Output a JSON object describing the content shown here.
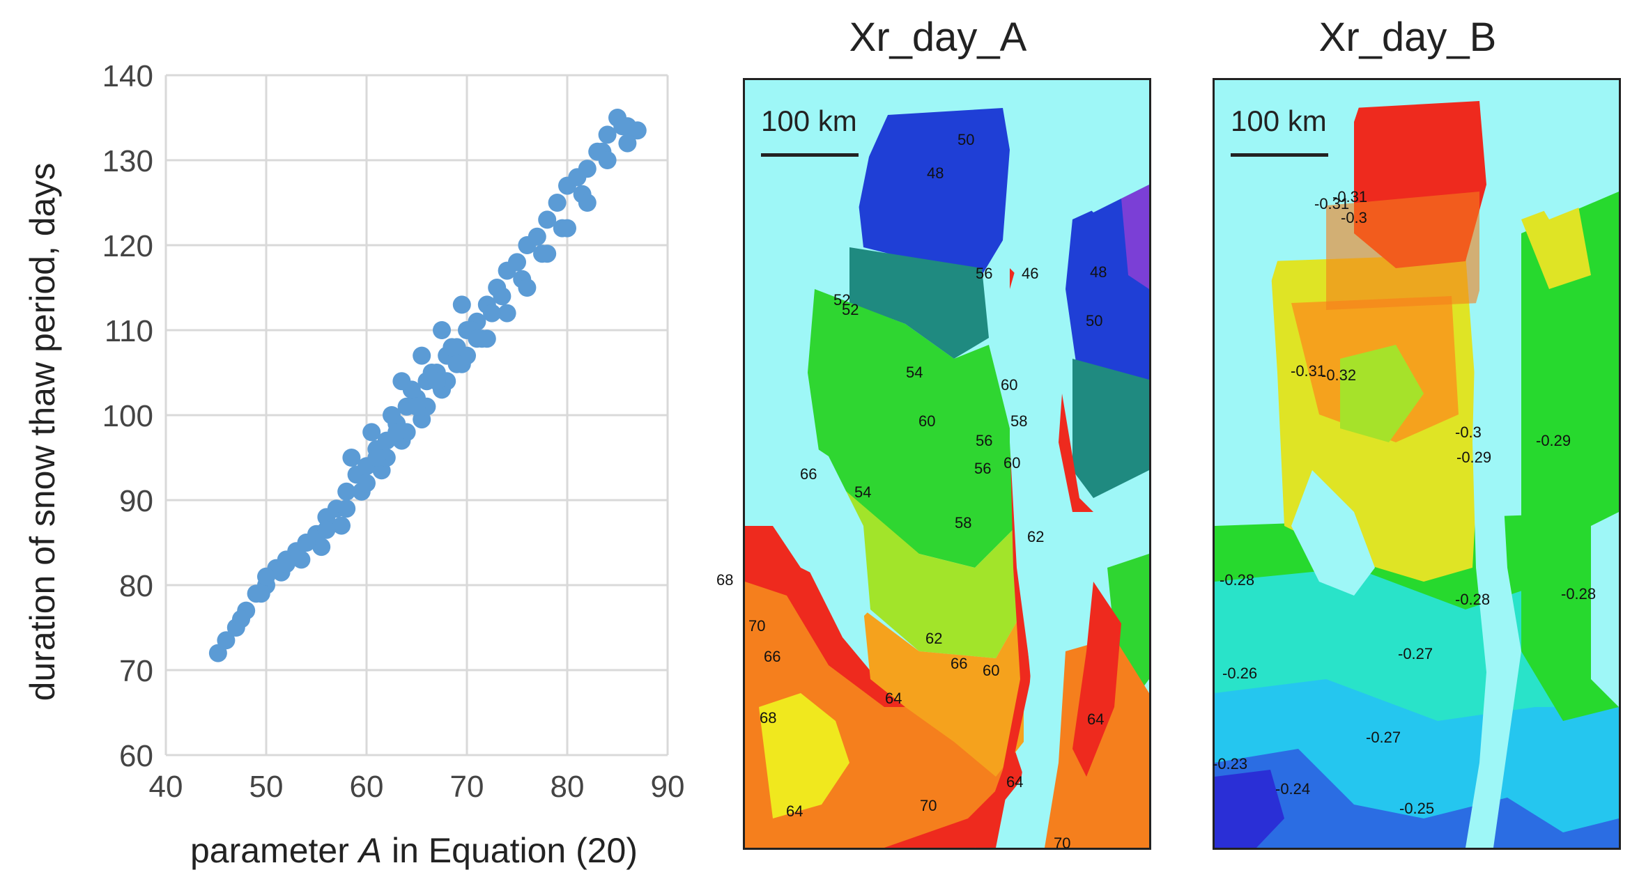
{
  "scatter": {
    "chart_data": {
      "type": "scatter",
      "title": "",
      "xlabel_prefix": "parameter ",
      "xlabel_italic": "A",
      "xlabel_suffix": " in Equation (20)",
      "ylabel": "duration of snow thaw period, days",
      "xlim": [
        40,
        90
      ],
      "ylim": [
        60,
        140
      ],
      "x_ticks": [
        "40",
        "50",
        "60",
        "70",
        "80",
        "90"
      ],
      "y_ticks": [
        "60",
        "70",
        "80",
        "90",
        "100",
        "110",
        "120",
        "130",
        "140"
      ],
      "grid": true,
      "point_color": "#5b9bd5",
      "x": [
        45.2,
        46,
        47,
        48,
        49,
        50,
        51,
        52,
        53,
        54,
        55,
        56,
        57,
        58,
        59,
        60,
        61,
        62,
        63,
        64,
        65,
        66,
        67,
        68,
        69,
        70,
        71,
        72,
        73,
        74,
        75,
        76,
        77,
        78,
        79,
        80,
        81,
        82,
        83,
        84,
        85,
        86,
        87,
        47.5,
        49.5,
        51.5,
        53.5,
        55.5,
        57.5,
        59.5,
        61.5,
        63.5,
        65.5,
        67.5,
        69.5,
        71.5,
        73.5,
        75.5,
        77.5,
        79.5,
        81.5,
        83.5,
        85.5,
        50,
        52,
        54,
        56,
        58,
        60,
        62,
        64,
        66,
        68,
        70,
        72,
        74,
        76,
        78,
        80,
        82,
        84,
        86,
        58.5,
        60.5,
        62.5,
        64.5,
        66.5,
        68.5,
        70.5,
        72.5,
        61,
        63,
        65,
        67,
        69,
        71,
        63.5,
        65.5,
        67.5,
        69.5
      ],
      "y": [
        72,
        73.5,
        75,
        77,
        79,
        80,
        82,
        83,
        84,
        85,
        86,
        88,
        89,
        91,
        93,
        94,
        96,
        97,
        99,
        101,
        102,
        104,
        105,
        107,
        108,
        110,
        111,
        113,
        115,
        117,
        118,
        120,
        121,
        123,
        125,
        127,
        128,
        129,
        131,
        133,
        135,
        134,
        133.5,
        76,
        79,
        81.5,
        83,
        84.5,
        87,
        91,
        93.5,
        97,
        99.5,
        103,
        106,
        109,
        114,
        116,
        119,
        122,
        126,
        131,
        134,
        81,
        82.5,
        85,
        86.5,
        89,
        92,
        95,
        98,
        101,
        104,
        107,
        109,
        112,
        115,
        119,
        122,
        125,
        130,
        132,
        95,
        98,
        100,
        103,
        105,
        108,
        110,
        112,
        95,
        98,
        101,
        104,
        106,
        109,
        104,
        107,
        110,
        113
      ]
    }
  },
  "map_a": {
    "title": "Xr_day_A",
    "scalebar": "100 km",
    "labels": [
      "50",
      "48",
      "52",
      "56",
      "54",
      "58",
      "60",
      "56",
      "58",
      "50",
      "60",
      "62",
      "64",
      "66",
      "68",
      "70",
      "68",
      "66",
      "64",
      "62",
      "60",
      "64",
      "70",
      "70",
      "46",
      "48",
      "60",
      "56",
      "52",
      "54",
      "66",
      "64"
    ]
  },
  "map_b": {
    "title": "Xr_day_B",
    "scalebar": "100 km",
    "labels": [
      "-0.31",
      "-0.3",
      "-0.32",
      "-0.31",
      "-0.29",
      "-0.3",
      "-0.29",
      "-0.28",
      "-0.28",
      "-0.28",
      "-0.27",
      "-0.26",
      "-0.27",
      "-0.24",
      "-0.25",
      "-0.23",
      "-0.31"
    ]
  }
}
